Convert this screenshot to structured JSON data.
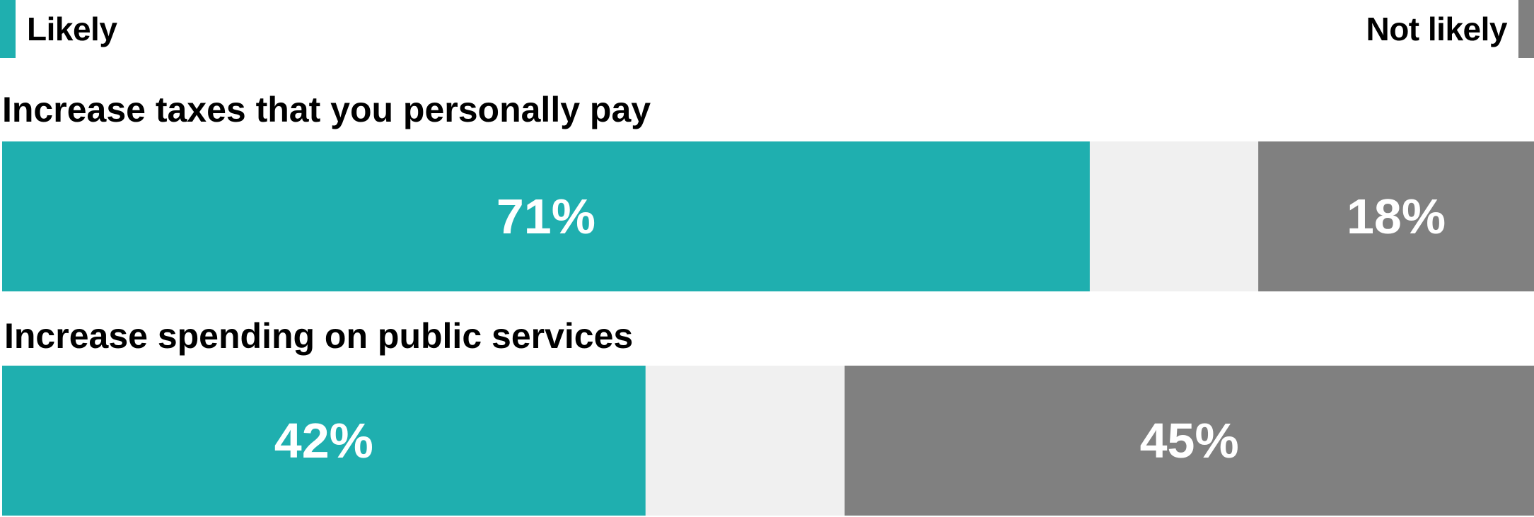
{
  "chart_data": {
    "type": "bar",
    "orientation": "horizontal-stacked",
    "series": [
      {
        "name": "Likely",
        "color": "#1fafaf",
        "values": [
          71,
          42
        ]
      },
      {
        "name": "Not likely",
        "color": "#808080",
        "values": [
          18,
          45
        ]
      }
    ],
    "neutral_color": "#f0f0f0",
    "categories": [
      "Increase taxes that you personally pay",
      "Increase spending on public services"
    ],
    "data_labels": [
      [
        "71%",
        "18%"
      ],
      [
        "42%",
        "45%"
      ]
    ],
    "xlim": [
      0,
      100
    ],
    "legend_position": "top",
    "grid": false
  }
}
